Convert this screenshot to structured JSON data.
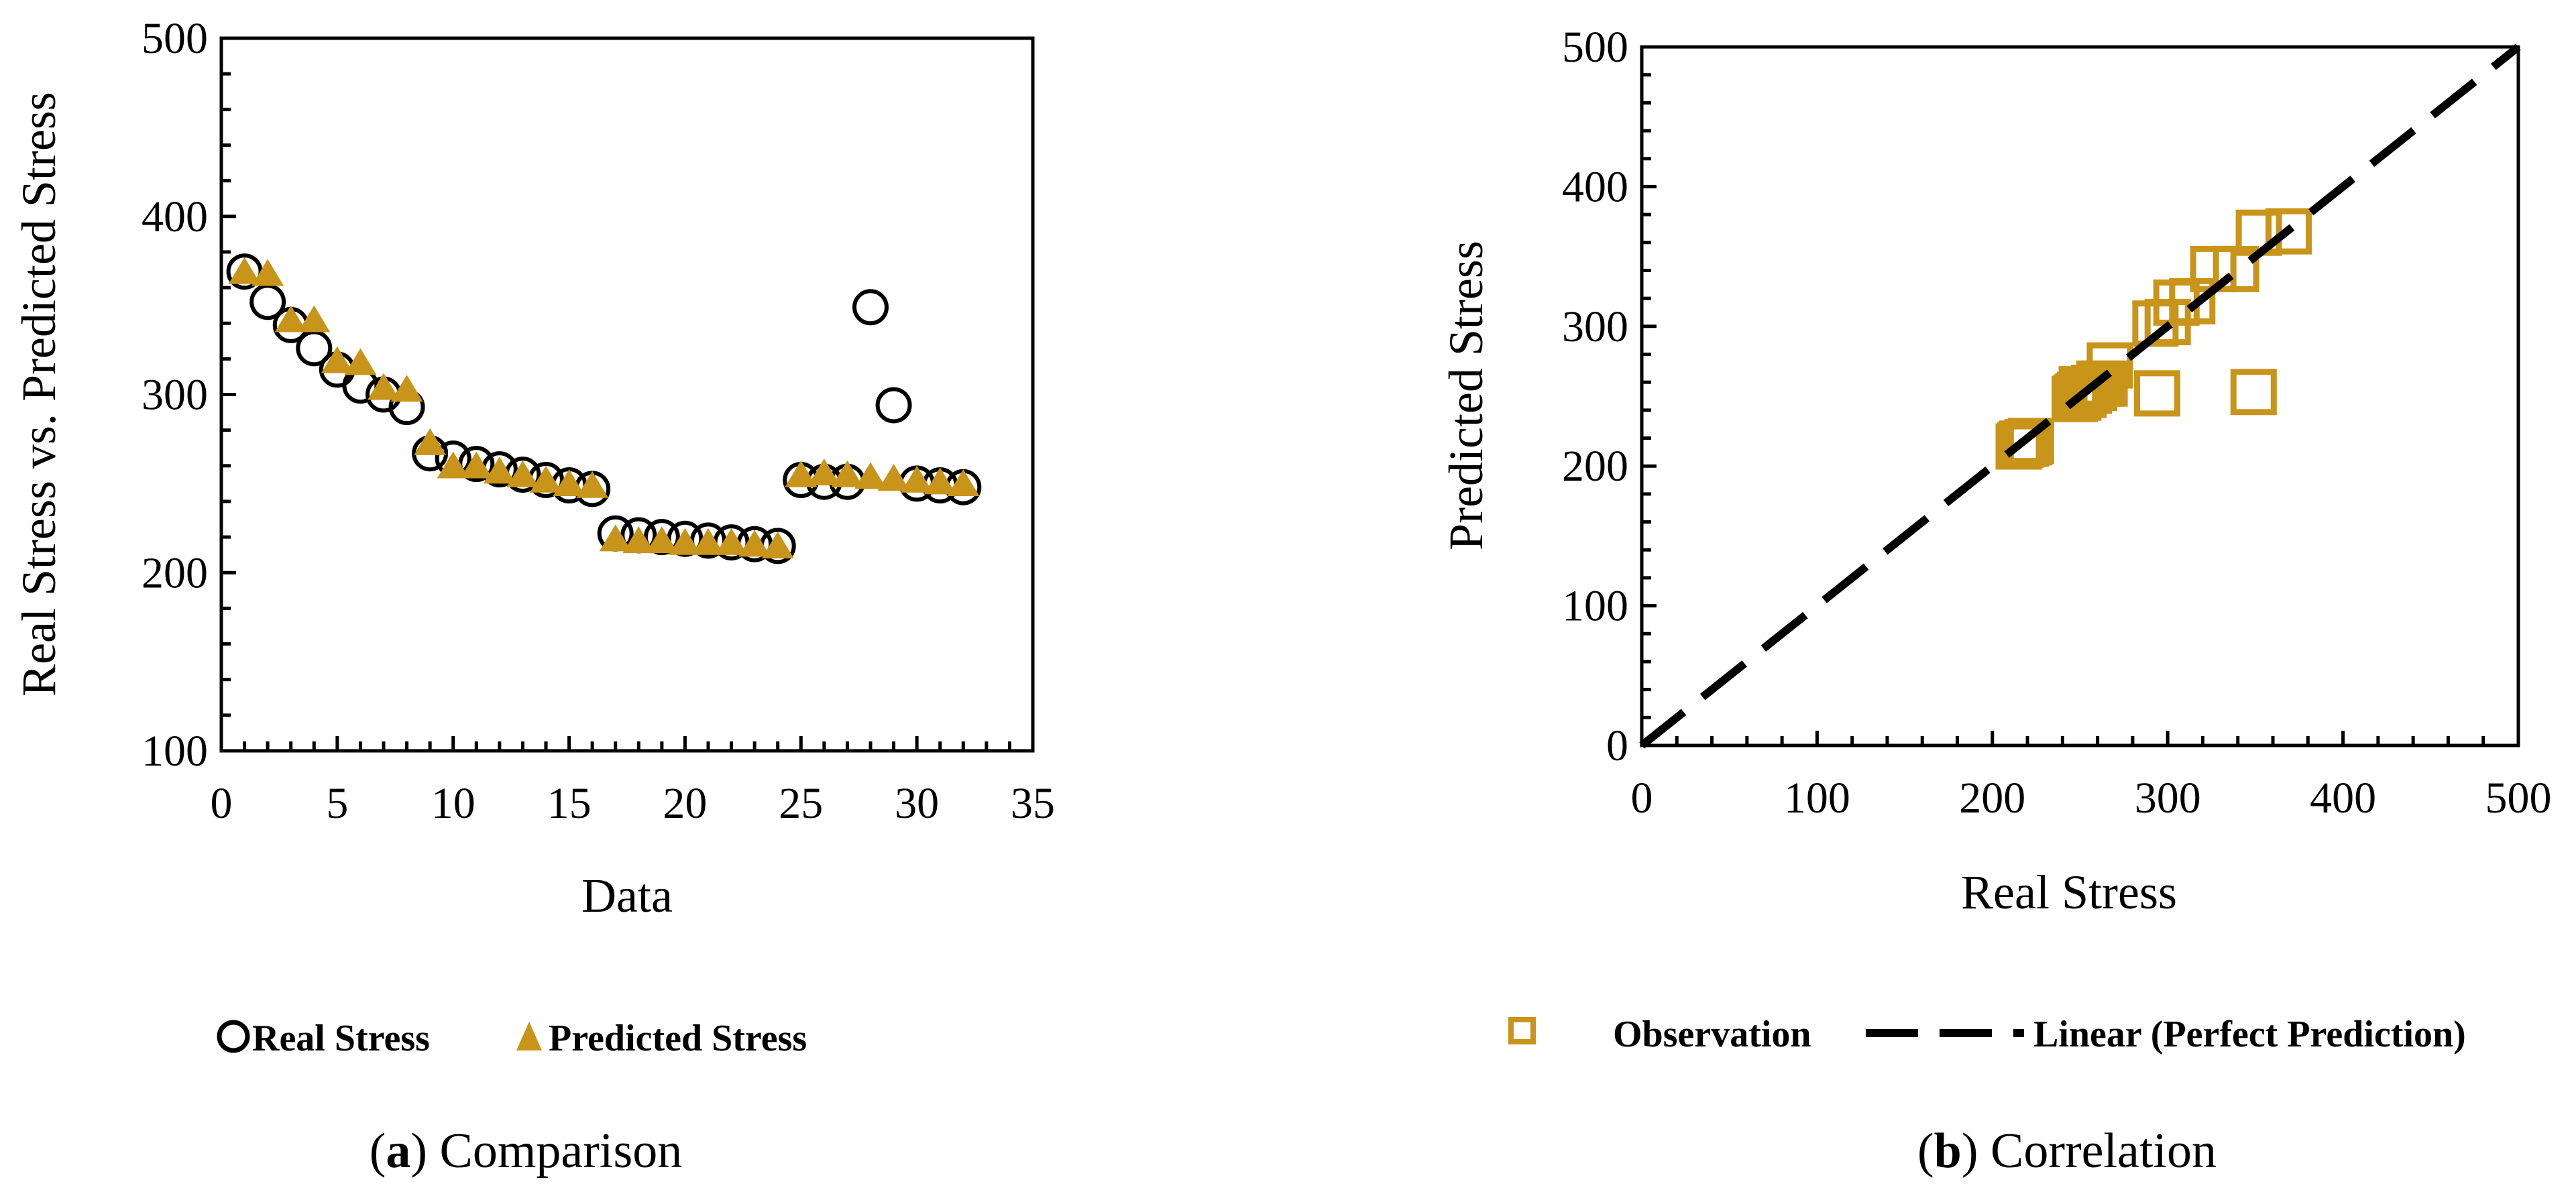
{
  "colors": {
    "accent": "#C8941A",
    "ink": "#000000",
    "background": "#FFFFFF"
  },
  "chart_data": [
    {
      "type": "scatter",
      "title": "",
      "xlabel": "Data",
      "ylabel": "Real Stress  vs. Predicted Stress",
      "xlim": [
        0,
        35
      ],
      "ylim": [
        100,
        500
      ],
      "xticks": [
        0,
        5,
        10,
        15,
        20,
        25,
        30,
        35
      ],
      "yticks": [
        100,
        200,
        300,
        400,
        500
      ],
      "caption_letter": "a",
      "caption_text": "Comparison",
      "series": [
        {
          "name": "Real Stress",
          "marker": "circle-open",
          "x": [
            1,
            2,
            3,
            4,
            5,
            6,
            7,
            8,
            9,
            10,
            11,
            12,
            13,
            14,
            15,
            16,
            17,
            18,
            19,
            20,
            21,
            22,
            23,
            24,
            25,
            26,
            27,
            28,
            29,
            30,
            31,
            32
          ],
          "y": [
            369,
            352,
            339,
            326,
            314,
            305,
            300,
            293,
            267,
            264,
            261,
            258,
            255,
            252,
            249,
            247,
            222,
            221,
            220,
            219,
            218,
            217,
            216,
            215,
            252,
            251,
            251,
            349,
            294,
            250,
            249,
            248
          ]
        },
        {
          "name": "Predicted Stress",
          "marker": "triangle-filled",
          "x": [
            1,
            2,
            3,
            4,
            5,
            6,
            7,
            8,
            9,
            10,
            11,
            12,
            13,
            14,
            15,
            16,
            17,
            18,
            19,
            20,
            21,
            22,
            23,
            24,
            25,
            26,
            27,
            28,
            29,
            30,
            31,
            32
          ],
          "y": [
            368,
            367,
            341,
            341,
            318,
            317,
            303,
            302,
            272,
            259,
            259,
            256,
            254,
            251,
            249,
            248,
            218,
            217,
            217,
            216,
            216,
            216,
            215,
            214,
            254,
            255,
            254,
            253,
            252,
            251,
            250,
            249
          ]
        }
      ],
      "legend_position": "bottom"
    },
    {
      "type": "scatter",
      "title": "",
      "xlabel": "Real Stress",
      "ylabel": "Predicted Stress",
      "xlim": [
        0,
        500
      ],
      "ylim": [
        0,
        500
      ],
      "xticks": [
        0,
        100,
        200,
        300,
        400,
        500
      ],
      "yticks": [
        0,
        100,
        200,
        300,
        400,
        500
      ],
      "caption_letter": "b",
      "caption_text": "Correlation",
      "series": [
        {
          "name": "Observation",
          "marker": "square-open",
          "x": [
            369,
            352,
            339,
            326,
            314,
            305,
            300,
            293,
            267,
            264,
            261,
            258,
            255,
            252,
            249,
            247,
            222,
            221,
            220,
            219,
            218,
            217,
            216,
            215,
            252,
            251,
            251,
            349,
            294,
            250,
            249,
            248
          ],
          "y": [
            368,
            367,
            341,
            341,
            318,
            317,
            303,
            302,
            272,
            259,
            259,
            256,
            254,
            251,
            249,
            248,
            218,
            217,
            217,
            216,
            216,
            216,
            215,
            214,
            254,
            255,
            254,
            253,
            252,
            251,
            250,
            249
          ]
        },
        {
          "name": "Linear (Perfect Prediction)",
          "marker": "line-dashed",
          "x": [
            0,
            500
          ],
          "y": [
            0,
            500
          ]
        }
      ],
      "legend_position": "bottom"
    }
  ]
}
